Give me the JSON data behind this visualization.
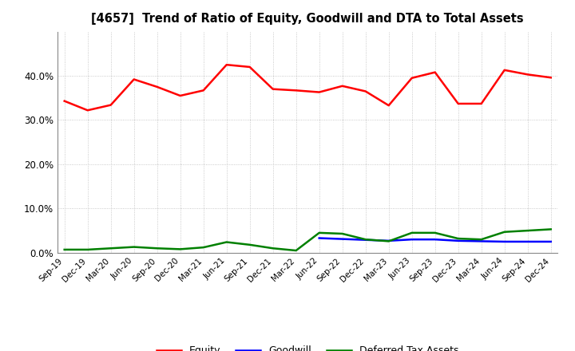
{
  "title": "[4657]  Trend of Ratio of Equity, Goodwill and DTA to Total Assets",
  "x_labels": [
    "Sep-19",
    "Dec-19",
    "Mar-20",
    "Jun-20",
    "Sep-20",
    "Dec-20",
    "Mar-21",
    "Jun-21",
    "Sep-21",
    "Dec-21",
    "Mar-22",
    "Jun-22",
    "Sep-22",
    "Dec-22",
    "Mar-23",
    "Jun-23",
    "Sep-23",
    "Dec-23",
    "Mar-24",
    "Jun-24",
    "Sep-24",
    "Dec-24"
  ],
  "equity": [
    0.343,
    0.322,
    0.334,
    0.392,
    0.375,
    0.355,
    0.367,
    0.425,
    0.42,
    0.37,
    0.367,
    0.363,
    0.377,
    0.365,
    0.333,
    0.395,
    0.408,
    0.337,
    0.337,
    0.413,
    0.403,
    0.396
  ],
  "goodwill": [
    null,
    null,
    null,
    null,
    null,
    null,
    null,
    null,
    null,
    null,
    null,
    0.033,
    0.031,
    0.029,
    0.027,
    0.03,
    0.03,
    0.027,
    0.026,
    0.025,
    0.025,
    0.025
  ],
  "dta": [
    0.007,
    0.007,
    0.01,
    0.013,
    0.01,
    0.008,
    0.012,
    0.024,
    0.018,
    0.01,
    0.005,
    0.045,
    0.043,
    0.03,
    0.026,
    0.045,
    0.045,
    0.032,
    0.03,
    0.047,
    0.05,
    0.053
  ],
  "equity_color": "#ff0000",
  "goodwill_color": "#0000ff",
  "dta_color": "#008000",
  "background_color": "#ffffff",
  "plot_bg_color": "#ffffff",
  "grid_color": "#aaaaaa",
  "ylim": [
    0.0,
    0.5
  ],
  "yticks": [
    0.0,
    0.1,
    0.2,
    0.3,
    0.4
  ],
  "legend_labels": [
    "Equity",
    "Goodwill",
    "Deferred Tax Assets"
  ]
}
